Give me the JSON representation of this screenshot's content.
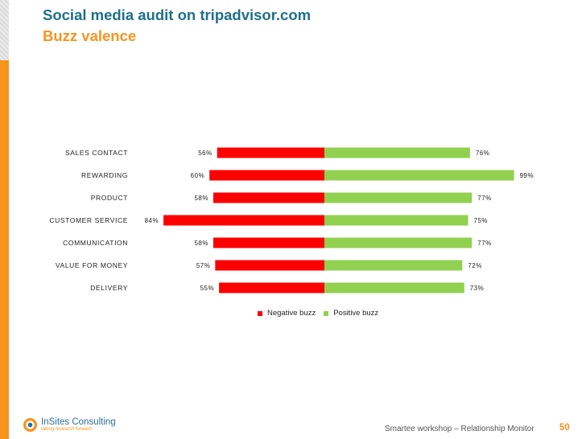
{
  "header": {
    "title": "Social media audit on tripadvisor.com",
    "subtitle": "Buzz valence"
  },
  "chart_data": {
    "type": "bar",
    "orientation": "horizontal-diverging",
    "categories": [
      "SALES CONTACT",
      "REWARDING",
      "PRODUCT",
      "CUSTOMER SERVICE",
      "COMMUNICATION",
      "VALUE FOR MONEY",
      "DELIVERY"
    ],
    "series": [
      {
        "name": "Negative buzz",
        "color": "#ff0000",
        "values": [
          56,
          60,
          58,
          84,
          58,
          57,
          55
        ],
        "labels": [
          "56%",
          "60%",
          "58%",
          "84%",
          "58%",
          "57%",
          "55%"
        ]
      },
      {
        "name": "Positive buzz",
        "color": "#92d050",
        "values": [
          76,
          99,
          77,
          75,
          77,
          72,
          73
        ],
        "labels": [
          "76%",
          "99%",
          "77%",
          "75%",
          "77%",
          "72%",
          "73%"
        ]
      }
    ],
    "xlim": [
      -100,
      100
    ],
    "legend_position": "bottom-center"
  },
  "legend": {
    "items": [
      {
        "label": "Negative buzz",
        "color": "#ff0000"
      },
      {
        "label": "Positive buzz",
        "color": "#92d050"
      }
    ]
  },
  "footer": {
    "logo_name": "InSites Consulting",
    "logo_tagline": "taking research forward",
    "workshop": "Smartee workshop – Relationship Monitor",
    "page_number": "50"
  }
}
